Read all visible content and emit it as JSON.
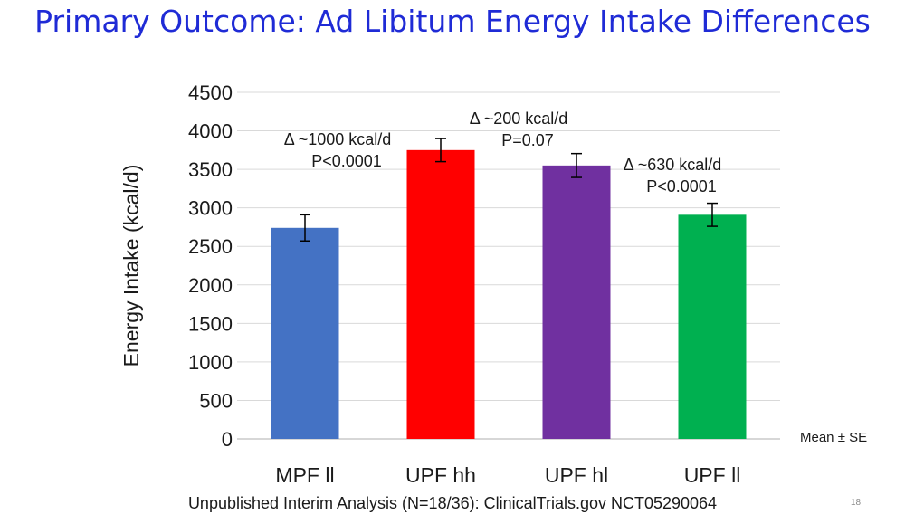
{
  "slide": {
    "title": "Primary Outcome: Ad Libitum Energy Intake Differences",
    "footer": "Unpublished Interim Analysis (N=18/36): ClinicalTrials.gov NCT05290064",
    "slide_number": "18",
    "mean_se_note": "Mean ± SE"
  },
  "chart_data": {
    "type": "bar",
    "title": "",
    "xlabel": "",
    "ylabel": "Energy Intake (kcal/d)",
    "ylim": [
      0,
      4500
    ],
    "yticks": [
      "0",
      "500",
      "1000",
      "1500",
      "2000",
      "2500",
      "3000",
      "3500",
      "4000",
      "4500"
    ],
    "grid": true,
    "categories": [
      "MPF ll",
      "UPF hh",
      "UPF hl",
      "UPF ll"
    ],
    "values": [
      2740,
      3750,
      3550,
      2910
    ],
    "errors": [
      170,
      150,
      155,
      150
    ],
    "colors": [
      "#4472c4",
      "#ff0000",
      "#7030a0",
      "#00b050"
    ],
    "annotations": [
      {
        "lines": [
          "Δ ~1000 kcal/d",
          "P<0.0001"
        ]
      },
      {
        "lines": [
          "Δ ~200 kcal/d",
          "P=0.07"
        ]
      },
      {
        "lines": [
          "Δ ~630 kcal/d",
          "P<0.0001"
        ]
      }
    ]
  }
}
